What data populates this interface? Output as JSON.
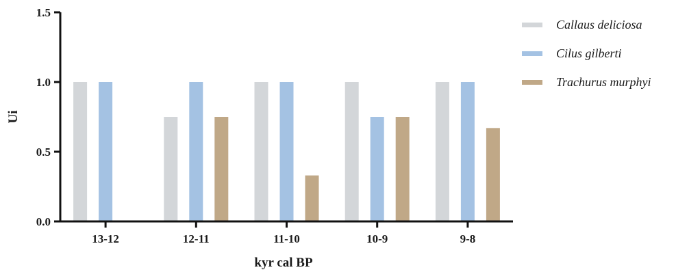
{
  "chart_data": {
    "type": "bar",
    "title": "",
    "xlabel": "kyr cal BP",
    "ylabel": "Ui",
    "ylim": [
      0,
      1.5
    ],
    "yticks": [
      "0.0",
      "0.5",
      "1.0",
      "1.5"
    ],
    "categories": [
      "13-12",
      "12-11",
      "11-10",
      "10-9",
      "9-8"
    ],
    "series": [
      {
        "name": "Callaus deliciosa",
        "color": "#d3d6d9",
        "values": [
          1.0,
          0.75,
          1.0,
          1.0,
          1.0
        ]
      },
      {
        "name": "Cilus gilberti",
        "color": "#a4c2e3",
        "values": [
          1.0,
          1.0,
          1.0,
          0.75,
          1.0
        ]
      },
      {
        "name": "Trachurus murphyi",
        "color": "#c0a887",
        "values": [
          0,
          0.75,
          0.33,
          0.75,
          0.67
        ]
      }
    ],
    "grid": false,
    "legend": "right"
  }
}
